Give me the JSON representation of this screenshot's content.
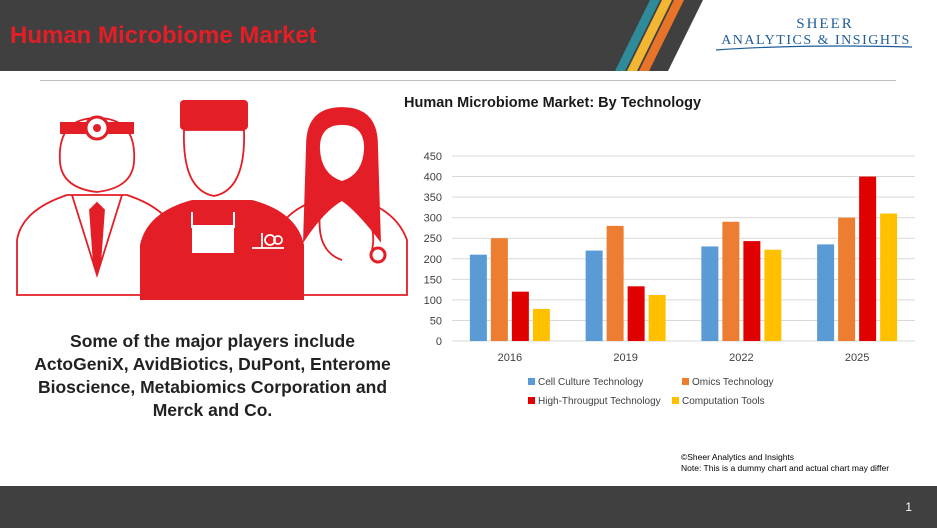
{
  "slide": {
    "title": "Human Microbiome Market",
    "page_number": "1",
    "players_text": "Some of the major players include ActoGeniX, AvidBiotics, DuPont, Enterome Bioscience, Metabiomics Corporation and Merck and Co."
  },
  "logo": {
    "line1": "SHEER",
    "line2": "ANALYTICS & INSIGHTS"
  },
  "footnote": {
    "line1": "©Sheer Analytics and Insights",
    "line2": "Note: This is a dummy chart and actual chart may differ"
  },
  "colors": {
    "header": "#404040",
    "title_red": "#e41e26",
    "icon_red": "#e41e26",
    "logo_blue": "#1f5c99"
  },
  "chart_data": {
    "type": "bar",
    "title": "Human Microbiome Market: By Technology",
    "categories": [
      "2016",
      "2019",
      "2022",
      "2025"
    ],
    "ylim": [
      0,
      450
    ],
    "yticks": [
      0,
      50,
      100,
      150,
      200,
      250,
      300,
      350,
      400,
      450
    ],
    "grid": true,
    "legend_position": "bottom",
    "series": [
      {
        "name": "Cell Culture Technology",
        "color": "#5b9bd5",
        "values": [
          210,
          220,
          230,
          235
        ]
      },
      {
        "name": "Omics Technology",
        "color": "#ed7d31",
        "values": [
          250,
          280,
          290,
          300
        ]
      },
      {
        "name": "High-Througput Technology",
        "color": "#e00000",
        "values": [
          120,
          133,
          243,
          400
        ]
      },
      {
        "name": "Computation Tools",
        "color": "#ffc000",
        "values": [
          78,
          112,
          222,
          310
        ]
      }
    ]
  }
}
